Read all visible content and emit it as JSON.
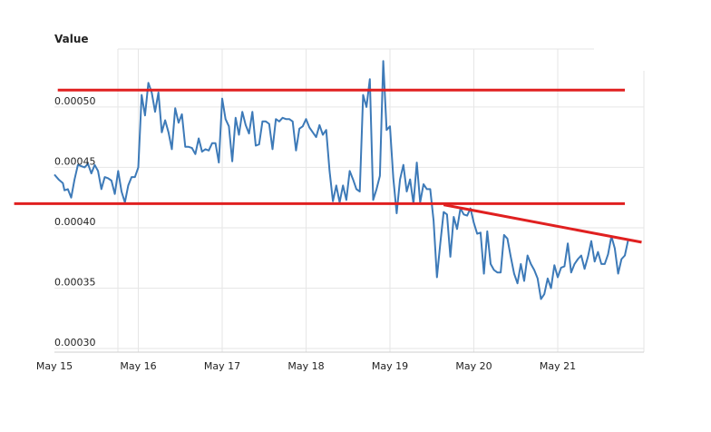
{
  "chart_data": {
    "type": "line",
    "ylabel": "Value",
    "xlabel": "",
    "title": "",
    "x_ticks": [
      "May 15",
      "May 16",
      "May 17",
      "May 18",
      "May 19",
      "May 20",
      "May 21"
    ],
    "y_ticks": [
      "0.00030",
      "0.00035",
      "0.00040",
      "0.00045",
      "0.00050"
    ],
    "ylim": [
      0.000297,
      0.000548
    ],
    "xlim": [
      0,
      7.0
    ],
    "grid": true,
    "series_color": "#3d7ab8",
    "overlay_color": "#e02020",
    "series": [
      {
        "values": [
          [
            0.0,
            0.000444
          ],
          [
            0.05,
            0.00044
          ],
          [
            0.1,
            0.000437
          ],
          [
            0.12,
            0.000431
          ],
          [
            0.16,
            0.000432
          ],
          [
            0.2,
            0.000425
          ],
          [
            0.24,
            0.00044
          ],
          [
            0.28,
            0.000452
          ],
          [
            0.32,
            0.000451
          ],
          [
            0.36,
            0.00045
          ],
          [
            0.4,
            0.000453
          ],
          [
            0.44,
            0.000445
          ],
          [
            0.48,
            0.000452
          ],
          [
            0.52,
            0.000447
          ],
          [
            0.56,
            0.000432
          ],
          [
            0.6,
            0.000442
          ],
          [
            0.64,
            0.000441
          ],
          [
            0.68,
            0.000439
          ],
          [
            0.72,
            0.000428
          ],
          [
            0.76,
            0.000447
          ],
          [
            0.8,
            0.00043
          ],
          [
            0.84,
            0.000421
          ],
          [
            0.88,
            0.000435
          ],
          [
            0.92,
            0.000442
          ],
          [
            0.96,
            0.000442
          ],
          [
            1.0,
            0.00045
          ],
          [
            1.04,
            0.00051
          ],
          [
            1.08,
            0.000493
          ],
          [
            1.12,
            0.00052
          ],
          [
            1.16,
            0.000512
          ],
          [
            1.2,
            0.000496
          ],
          [
            1.24,
            0.000512
          ],
          [
            1.28,
            0.000479
          ],
          [
            1.32,
            0.000489
          ],
          [
            1.36,
            0.000479
          ],
          [
            1.4,
            0.000465
          ],
          [
            1.44,
            0.000499
          ],
          [
            1.48,
            0.000487
          ],
          [
            1.52,
            0.000494
          ],
          [
            1.56,
            0.000467
          ],
          [
            1.6,
            0.000467
          ],
          [
            1.64,
            0.000466
          ],
          [
            1.68,
            0.000461
          ],
          [
            1.72,
            0.000474
          ],
          [
            1.76,
            0.000463
          ],
          [
            1.8,
            0.000465
          ],
          [
            1.84,
            0.000464
          ],
          [
            1.88,
            0.00047
          ],
          [
            1.92,
            0.00047
          ],
          [
            1.96,
            0.000454
          ],
          [
            2.0,
            0.000507
          ],
          [
            2.04,
            0.00049
          ],
          [
            2.08,
            0.000484
          ],
          [
            2.12,
            0.000455
          ],
          [
            2.16,
            0.000491
          ],
          [
            2.2,
            0.000477
          ],
          [
            2.24,
            0.000496
          ],
          [
            2.28,
            0.000485
          ],
          [
            2.32,
            0.000478
          ],
          [
            2.36,
            0.000496
          ],
          [
            2.4,
            0.000468
          ],
          [
            2.44,
            0.000469
          ],
          [
            2.48,
            0.000488
          ],
          [
            2.52,
            0.000488
          ],
          [
            2.56,
            0.000486
          ],
          [
            2.6,
            0.000465
          ],
          [
            2.64,
            0.00049
          ],
          [
            2.68,
            0.000488
          ],
          [
            2.72,
            0.000491
          ],
          [
            2.76,
            0.00049
          ],
          [
            2.8,
            0.00049
          ],
          [
            2.84,
            0.000488
          ],
          [
            2.88,
            0.000464
          ],
          [
            2.92,
            0.000482
          ],
          [
            2.96,
            0.000484
          ],
          [
            3.0,
            0.00049
          ],
          [
            3.04,
            0.000483
          ],
          [
            3.08,
            0.000479
          ],
          [
            3.12,
            0.000475
          ],
          [
            3.16,
            0.000485
          ],
          [
            3.2,
            0.000477
          ],
          [
            3.24,
            0.000481
          ],
          [
            3.28,
            0.000447
          ],
          [
            3.32,
            0.000422
          ],
          [
            3.36,
            0.000435
          ],
          [
            3.4,
            0.000421
          ],
          [
            3.44,
            0.000435
          ],
          [
            3.48,
            0.000423
          ],
          [
            3.52,
            0.000447
          ],
          [
            3.56,
            0.00044
          ],
          [
            3.6,
            0.000432
          ],
          [
            3.64,
            0.00043
          ],
          [
            3.68,
            0.00051
          ],
          [
            3.72,
            0.0005
          ],
          [
            3.76,
            0.000523
          ],
          [
            3.8,
            0.000423
          ],
          [
            3.84,
            0.000432
          ],
          [
            3.88,
            0.000443
          ],
          [
            3.92,
            0.000538
          ],
          [
            3.96,
            0.000481
          ],
          [
            4.0,
            0.000484
          ],
          [
            4.04,
            0.000441
          ],
          [
            4.08,
            0.000412
          ],
          [
            4.12,
            0.00044
          ],
          [
            4.16,
            0.000452
          ],
          [
            4.2,
            0.00043
          ],
          [
            4.24,
            0.00044
          ],
          [
            4.28,
            0.00042
          ],
          [
            4.32,
            0.000454
          ],
          [
            4.36,
            0.000421
          ],
          [
            4.4,
            0.000436
          ],
          [
            4.44,
            0.000432
          ],
          [
            4.48,
            0.000432
          ],
          [
            4.52,
            0.000406
          ],
          [
            4.56,
            0.000359
          ],
          [
            4.6,
            0.000387
          ],
          [
            4.64,
            0.000413
          ],
          [
            4.68,
            0.000411
          ],
          [
            4.72,
            0.000376
          ],
          [
            4.76,
            0.000409
          ],
          [
            4.8,
            0.000399
          ],
          [
            4.84,
            0.000416
          ],
          [
            4.88,
            0.000411
          ],
          [
            4.92,
            0.00041
          ],
          [
            4.96,
            0.000416
          ],
          [
            5.0,
            0.000404
          ],
          [
            5.04,
            0.000395
          ],
          [
            5.08,
            0.000396
          ],
          [
            5.12,
            0.000362
          ],
          [
            5.16,
            0.000397
          ],
          [
            5.2,
            0.00037
          ],
          [
            5.24,
            0.000365
          ],
          [
            5.28,
            0.000363
          ],
          [
            5.32,
            0.000363
          ],
          [
            5.36,
            0.000394
          ],
          [
            5.4,
            0.000391
          ],
          [
            5.44,
            0.000376
          ],
          [
            5.48,
            0.000362
          ],
          [
            5.52,
            0.000354
          ],
          [
            5.56,
            0.00037
          ],
          [
            5.6,
            0.000356
          ],
          [
            5.64,
            0.000377
          ],
          [
            5.68,
            0.00037
          ],
          [
            5.72,
            0.000365
          ],
          [
            5.76,
            0.000358
          ],
          [
            5.8,
            0.000341
          ],
          [
            5.84,
            0.000345
          ],
          [
            5.88,
            0.000358
          ],
          [
            5.92,
            0.00035
          ],
          [
            5.96,
            0.000369
          ],
          [
            6.0,
            0.000359
          ],
          [
            6.04,
            0.000367
          ],
          [
            6.08,
            0.000368
          ],
          [
            6.12,
            0.000387
          ],
          [
            6.16,
            0.000363
          ],
          [
            6.2,
            0.00037
          ],
          [
            6.24,
            0.000374
          ],
          [
            6.28,
            0.000377
          ],
          [
            6.32,
            0.000366
          ],
          [
            6.36,
            0.000376
          ],
          [
            6.4,
            0.000389
          ],
          [
            6.44,
            0.000372
          ],
          [
            6.48,
            0.00038
          ],
          [
            6.52,
            0.00037
          ],
          [
            6.56,
            0.00037
          ],
          [
            6.6,
            0.000378
          ],
          [
            6.64,
            0.000393
          ],
          [
            6.68,
            0.000383
          ],
          [
            6.72,
            0.000362
          ],
          [
            6.76,
            0.000374
          ],
          [
            6.8,
            0.000377
          ],
          [
            6.84,
            0.00039
          ]
        ]
      }
    ],
    "overlays": [
      {
        "x1": 0.04,
        "y1": 0.000514,
        "x2": 6.8,
        "y2": 0.000514
      },
      {
        "x1": -0.48,
        "y1": 0.00042,
        "x2": 6.8,
        "y2": 0.00042
      },
      {
        "x1": 4.64,
        "y1": 0.000419,
        "x2": 7.0,
        "y2": 0.000388
      }
    ]
  }
}
